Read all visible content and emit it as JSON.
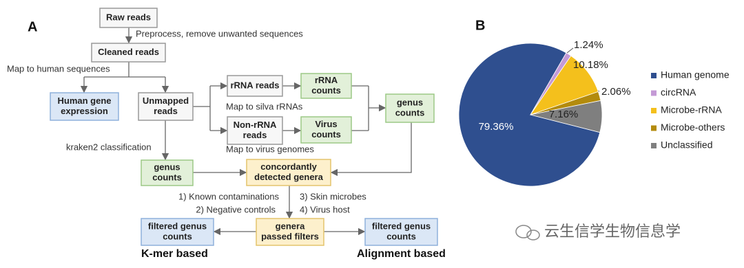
{
  "panel_a": {
    "label": "A",
    "nodes": [
      {
        "lines": [
          "Raw reads"
        ],
        "style": "plain"
      },
      {
        "lines": [
          "Cleaned reads"
        ],
        "style": "plain"
      },
      {
        "lines": [
          "Human gene",
          "expression"
        ],
        "style": "blue"
      },
      {
        "lines": [
          "Unmapped",
          "reads"
        ],
        "style": "plain"
      },
      {
        "lines": [
          "rRNA reads"
        ],
        "style": "plain"
      },
      {
        "lines": [
          "rRNA",
          "counts"
        ],
        "style": "green"
      },
      {
        "lines": [
          "Non-rRNA",
          "reads"
        ],
        "style": "plain"
      },
      {
        "lines": [
          "Virus",
          "counts"
        ],
        "style": "green"
      },
      {
        "lines": [
          "genus",
          "counts"
        ],
        "style": "green"
      },
      {
        "lines": [
          "genus",
          "counts"
        ],
        "style": "green"
      },
      {
        "lines": [
          "concordantly",
          "detected genera"
        ],
        "style": "yellow"
      },
      {
        "lines": [
          "genera",
          "passed filters"
        ],
        "style": "yellow"
      },
      {
        "lines": [
          "filtered genus",
          "counts"
        ],
        "style": "blue"
      },
      {
        "lines": [
          "filtered genus",
          "counts"
        ],
        "style": "blue"
      }
    ],
    "edge_labels": [
      "Preprocess, remove unwanted sequences",
      "Map to human sequences",
      "Map to silva rRNAs",
      "Map to virus genomes",
      "kraken2 classification",
      "1) Known contaminations",
      "2) Negative controls",
      "3) Skin microbes",
      "4) Virus host"
    ],
    "footers": [
      "K-mer based",
      "Alignment based"
    ]
  },
  "chart_data": {
    "type": "pie",
    "label": "B",
    "categories": [
      "Human genome",
      "circRNA",
      "Microbe-rRNA",
      "Microbe-others",
      "Unclassified"
    ],
    "values": [
      79.36,
      1.24,
      10.18,
      2.06,
      7.16
    ],
    "value_labels": [
      "79.36%",
      "1.24%",
      "10.18%",
      "2.06%",
      "7.16%"
    ],
    "colors": [
      "#2f4f8f",
      "#c49ad6",
      "#f4c01c",
      "#b38b0d",
      "#7f7f7f"
    ],
    "legend": "right"
  },
  "watermark": "云生信学生物信息学"
}
